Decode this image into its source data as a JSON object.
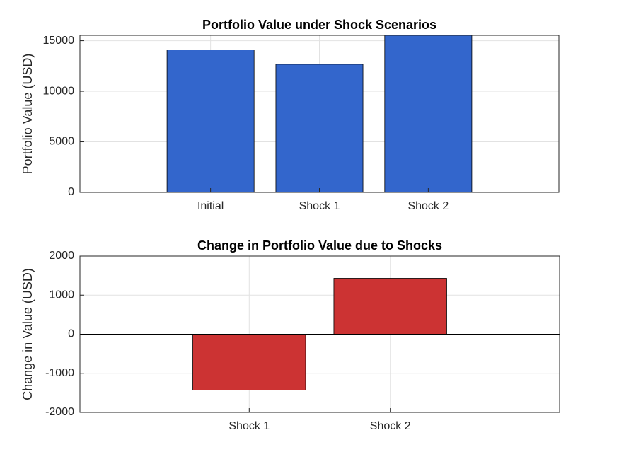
{
  "chart_data": [
    {
      "type": "bar",
      "title": "Portfolio Value under Shock Scenarios",
      "y_label": "Portfolio Value (USD)",
      "categories": [
        "Initial",
        "Shock 1",
        "Shock 2"
      ],
      "values": [
        14100,
        12670,
        15530
      ],
      "color": "#3366cc",
      "ylim": [
        0,
        15530
      ],
      "yticks": [
        0,
        5000,
        10000,
        15000
      ],
      "grid": true
    },
    {
      "type": "bar",
      "title": "Change in Portfolio Value due to Shocks",
      "y_label": "Change in Value (USD)",
      "categories": [
        "Shock 1",
        "Shock 2"
      ],
      "values": [
        -1430,
        1430
      ],
      "color": "#cc3333",
      "ylim": [
        -2000,
        2000
      ],
      "yticks": [
        -2000,
        -1000,
        0,
        1000,
        2000
      ],
      "grid": true
    }
  ]
}
